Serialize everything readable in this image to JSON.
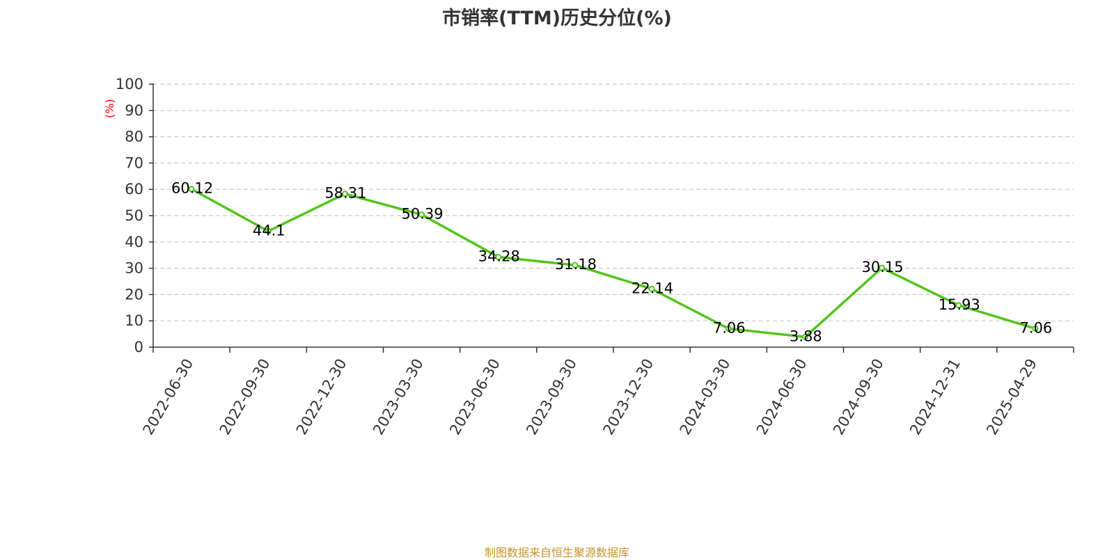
{
  "chart_data": {
    "type": "line",
    "title": "市销率(TTM)历史分位(%)",
    "ylabel": "(%)",
    "xlabel": "",
    "categories": [
      "2022-06-30",
      "2022-09-30",
      "2022-12-30",
      "2023-03-30",
      "2023-06-30",
      "2023-09-30",
      "2023-12-30",
      "2024-03-30",
      "2024-06-30",
      "2024-09-30",
      "2024-12-31",
      "2025-04-29"
    ],
    "series": [
      {
        "values": [
          60.12,
          44.1,
          58.31,
          50.39,
          34.28,
          31.18,
          22.14,
          7.06,
          3.88,
          30.15,
          15.93,
          7.06
        ]
      }
    ],
    "data_labels": [
      "60.12",
      "44.1",
      "58.31",
      "50.39",
      "34.28",
      "31.18",
      "22.14",
      "7.06",
      "3.88",
      "30.15",
      "15.93",
      "7.06"
    ],
    "ylim": [
      0,
      100
    ],
    "yticks": [
      0,
      10,
      20,
      30,
      40,
      50,
      60,
      70,
      80,
      90,
      100
    ],
    "grid": true,
    "legend": "none",
    "colors": {
      "line": "#52c41a",
      "ylabel": "#ff0000",
      "grid": "#cccccc",
      "axis": "#333333",
      "text": "#333333"
    }
  },
  "footer": {
    "source": "制图数据来自恒生聚源数据库"
  }
}
